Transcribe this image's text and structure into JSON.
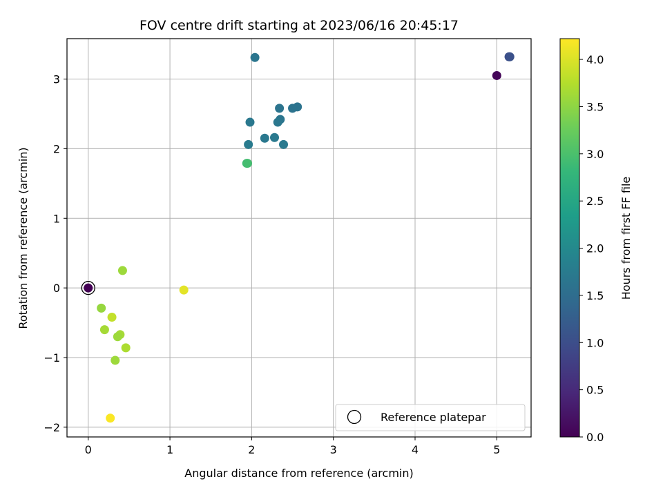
{
  "chart_data": {
    "type": "scatter",
    "title": "FOV centre drift starting at 2023/06/16 20:45:17",
    "xlabel": "Angular distance from reference (arcmin)",
    "ylabel": "Rotation from reference (arcmin)",
    "xlim": [
      -0.26,
      5.42
    ],
    "ylim": [
      -2.14,
      3.58
    ],
    "xticks": [
      0,
      1,
      2,
      3,
      4,
      5
    ],
    "yticks": [
      -2,
      -1,
      0,
      1,
      2,
      3
    ],
    "grid": true,
    "colormap": "viridis",
    "colorbar": {
      "label": "Hours from first FF file",
      "range": [
        0,
        4.22
      ],
      "ticks": [
        0.0,
        0.5,
        1.0,
        1.5,
        2.0,
        2.5,
        3.0,
        3.5,
        4.0
      ],
      "tick_labels": [
        "0.0",
        "0.5",
        "1.0",
        "1.5",
        "2.0",
        "2.5",
        "3.0",
        "3.5",
        "4.0"
      ]
    },
    "legend": {
      "placement": "lower-right",
      "entries": [
        "Reference platepar"
      ]
    },
    "reference_point": {
      "x": 0,
      "y": 0
    },
    "points": [
      {
        "x": 0.0,
        "y": 0.0,
        "hours": 0.0
      },
      {
        "x": 5.0,
        "y": 3.05,
        "hours": 0.05
      },
      {
        "x": 5.15,
        "y": 3.32,
        "hours": 1.0
      },
      {
        "x": 5.16,
        "y": 3.32,
        "hours": 1.05
      },
      {
        "x": 2.04,
        "y": 3.31,
        "hours": 1.65
      },
      {
        "x": 2.56,
        "y": 2.6,
        "hours": 1.6
      },
      {
        "x": 2.5,
        "y": 2.58,
        "hours": 1.6
      },
      {
        "x": 2.34,
        "y": 2.58,
        "hours": 1.62
      },
      {
        "x": 2.35,
        "y": 2.42,
        "hours": 1.65
      },
      {
        "x": 2.32,
        "y": 2.38,
        "hours": 1.67
      },
      {
        "x": 1.98,
        "y": 2.38,
        "hours": 1.7
      },
      {
        "x": 2.16,
        "y": 2.15,
        "hours": 1.7
      },
      {
        "x": 2.28,
        "y": 2.16,
        "hours": 1.72
      },
      {
        "x": 1.96,
        "y": 2.06,
        "hours": 1.75
      },
      {
        "x": 2.39,
        "y": 2.06,
        "hours": 1.72
      },
      {
        "x": 1.94,
        "y": 1.79,
        "hours": 2.9
      },
      {
        "x": 1.95,
        "y": 1.79,
        "hours": 2.95
      },
      {
        "x": 0.42,
        "y": 0.25,
        "hours": 3.6
      },
      {
        "x": 1.17,
        "y": -0.03,
        "hours": 4.05
      },
      {
        "x": 0.16,
        "y": -0.29,
        "hours": 3.55
      },
      {
        "x": 0.29,
        "y": -0.42,
        "hours": 3.85
      },
      {
        "x": 0.2,
        "y": -0.6,
        "hours": 3.65
      },
      {
        "x": 0.39,
        "y": -0.67,
        "hours": 3.65
      },
      {
        "x": 0.36,
        "y": -0.7,
        "hours": 3.6
      },
      {
        "x": 0.46,
        "y": -0.86,
        "hours": 3.7
      },
      {
        "x": 0.33,
        "y": -1.04,
        "hours": 3.6
      },
      {
        "x": 0.27,
        "y": -1.87,
        "hours": 4.2
      }
    ]
  }
}
